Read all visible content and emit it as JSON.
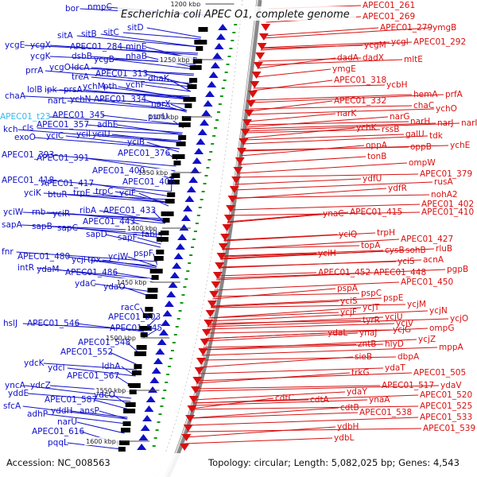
{
  "title": "Escherichia coli APEC O1, complete genome",
  "accession": "Accession: NC_008563",
  "topology": "Topology: circular; Length: 5,082,025 bp; Genes: 4,543",
  "colors": {
    "forward": "#1010c8",
    "reverse": "#d81010",
    "highlight": "#33bbee",
    "backbone": "#888888",
    "tick": "#119911"
  },
  "scale_ticks": [
    "1200 kbp",
    "1250 kbp",
    "1300 kbp",
    "1350 kbp",
    "1400 kbp",
    "1450 kbp",
    "1500 kbp",
    "1550 kbp",
    "1600 kbp"
  ],
  "forward_labels": [
    "bor",
    "nmpC",
    "sitD",
    "sitA",
    "sitB",
    "sitC",
    "ycgE",
    "ycgX",
    "APEC01_284",
    "minE",
    "ycgK",
    "dsbB",
    "ycgB",
    "nhaB",
    "prrA",
    "ycgO",
    "ldcA",
    "treA",
    "APEC01_313",
    "dhaK",
    "lolB",
    "ipk",
    "prsA",
    "ychM",
    "pth",
    "ychF",
    "chaA",
    "narL",
    "ychN",
    "APEC01_334",
    "narX",
    "APEC01_t23",
    "APEC01_345",
    "purU",
    "kch",
    "cls",
    "APEC01_357",
    "adhE",
    "exoO",
    "yciC",
    "yciI",
    "yciU",
    "yciB",
    "APEC01_393",
    "APEC01_391",
    "APEC01_376",
    "APEC01_400",
    "APEC01_406",
    "APEC01_418",
    "APEC01_417",
    "yciK",
    "btuR",
    "trpE",
    "trpC",
    "yciF",
    "yciW",
    "rnb",
    "yciR",
    "ribA",
    "APEC01_433",
    "sapA",
    "sapB",
    "sapC",
    "APEC01_443",
    "sapD",
    "sapF",
    "fabI",
    "fnr",
    "pspF",
    "APEC01_480",
    "ycjl",
    "tpx",
    "ycjW",
    "intR",
    "ydaM",
    "APEC01_486",
    "ydaC",
    "ydaO",
    "racC",
    "APEC01_503",
    "hslJ",
    "APEC01_546",
    "APEC01_545",
    "APEC01_548",
    "APEC01_552",
    "ydcK",
    "ydcl",
    "ldhA",
    "APEC01_567",
    "yncA",
    "ydcZ",
    "yddE",
    "APEC01_587",
    "ydcO",
    "sfcA",
    "yddH",
    "ansP",
    "adhP",
    "narU",
    "APEC01_616",
    "pqqL"
  ],
  "reverse_labels": [
    "APEC01_261",
    "APEC01_269",
    "APEC01_279",
    "ymgB",
    "ycgM",
    "ycgI",
    "APEC01_292",
    "dadA",
    "dadX",
    "mltE",
    "ymgE",
    "APEC01_318",
    "ycbH",
    "hemA",
    "prfA",
    "APEC01_332",
    "chaC",
    "ychO",
    "narK",
    "narG",
    "narH",
    "narJ",
    "narI",
    "ychK",
    "rssB",
    "galU",
    "tdk",
    "oppA",
    "oppB",
    "ychE",
    "tonB",
    "ompW",
    "APEC01_379",
    "ydfU",
    "rusA",
    "ydfR",
    "nohA2",
    "APEC01_402",
    "ynaC",
    "APEC01_415",
    "APEC01_410",
    "yciQ",
    "trpH",
    "APEC01_427",
    "topA",
    "cysB",
    "sohB",
    "rluB",
    "yciH",
    "yciS",
    "acnA",
    "pgpB",
    "APEC01_452",
    "APEC01_448",
    "APEC01_450",
    "pspA",
    "pspC",
    "yciS",
    "pspE",
    "ycjT",
    "ycjM",
    "ycjF",
    "ycjU",
    "ycjN",
    "tyrR",
    "ycjV",
    "ycjO",
    "ompG",
    "ycjG",
    "ydaL",
    "ynaJ",
    "ycjZ",
    "zntB",
    "hlyD",
    "mppA",
    "sieB",
    "dbpA",
    "ydaT",
    "APEC01_505",
    "trkG",
    "APEC01_517",
    "ydaV",
    "ydaY",
    "cdtC",
    "cdtA",
    "ynaA",
    "APEC01_520",
    "cdtB",
    "APEC01_525",
    "APEC01_538",
    "APEC01_533",
    "ydbH",
    "APEC01_539",
    "ydbL"
  ]
}
